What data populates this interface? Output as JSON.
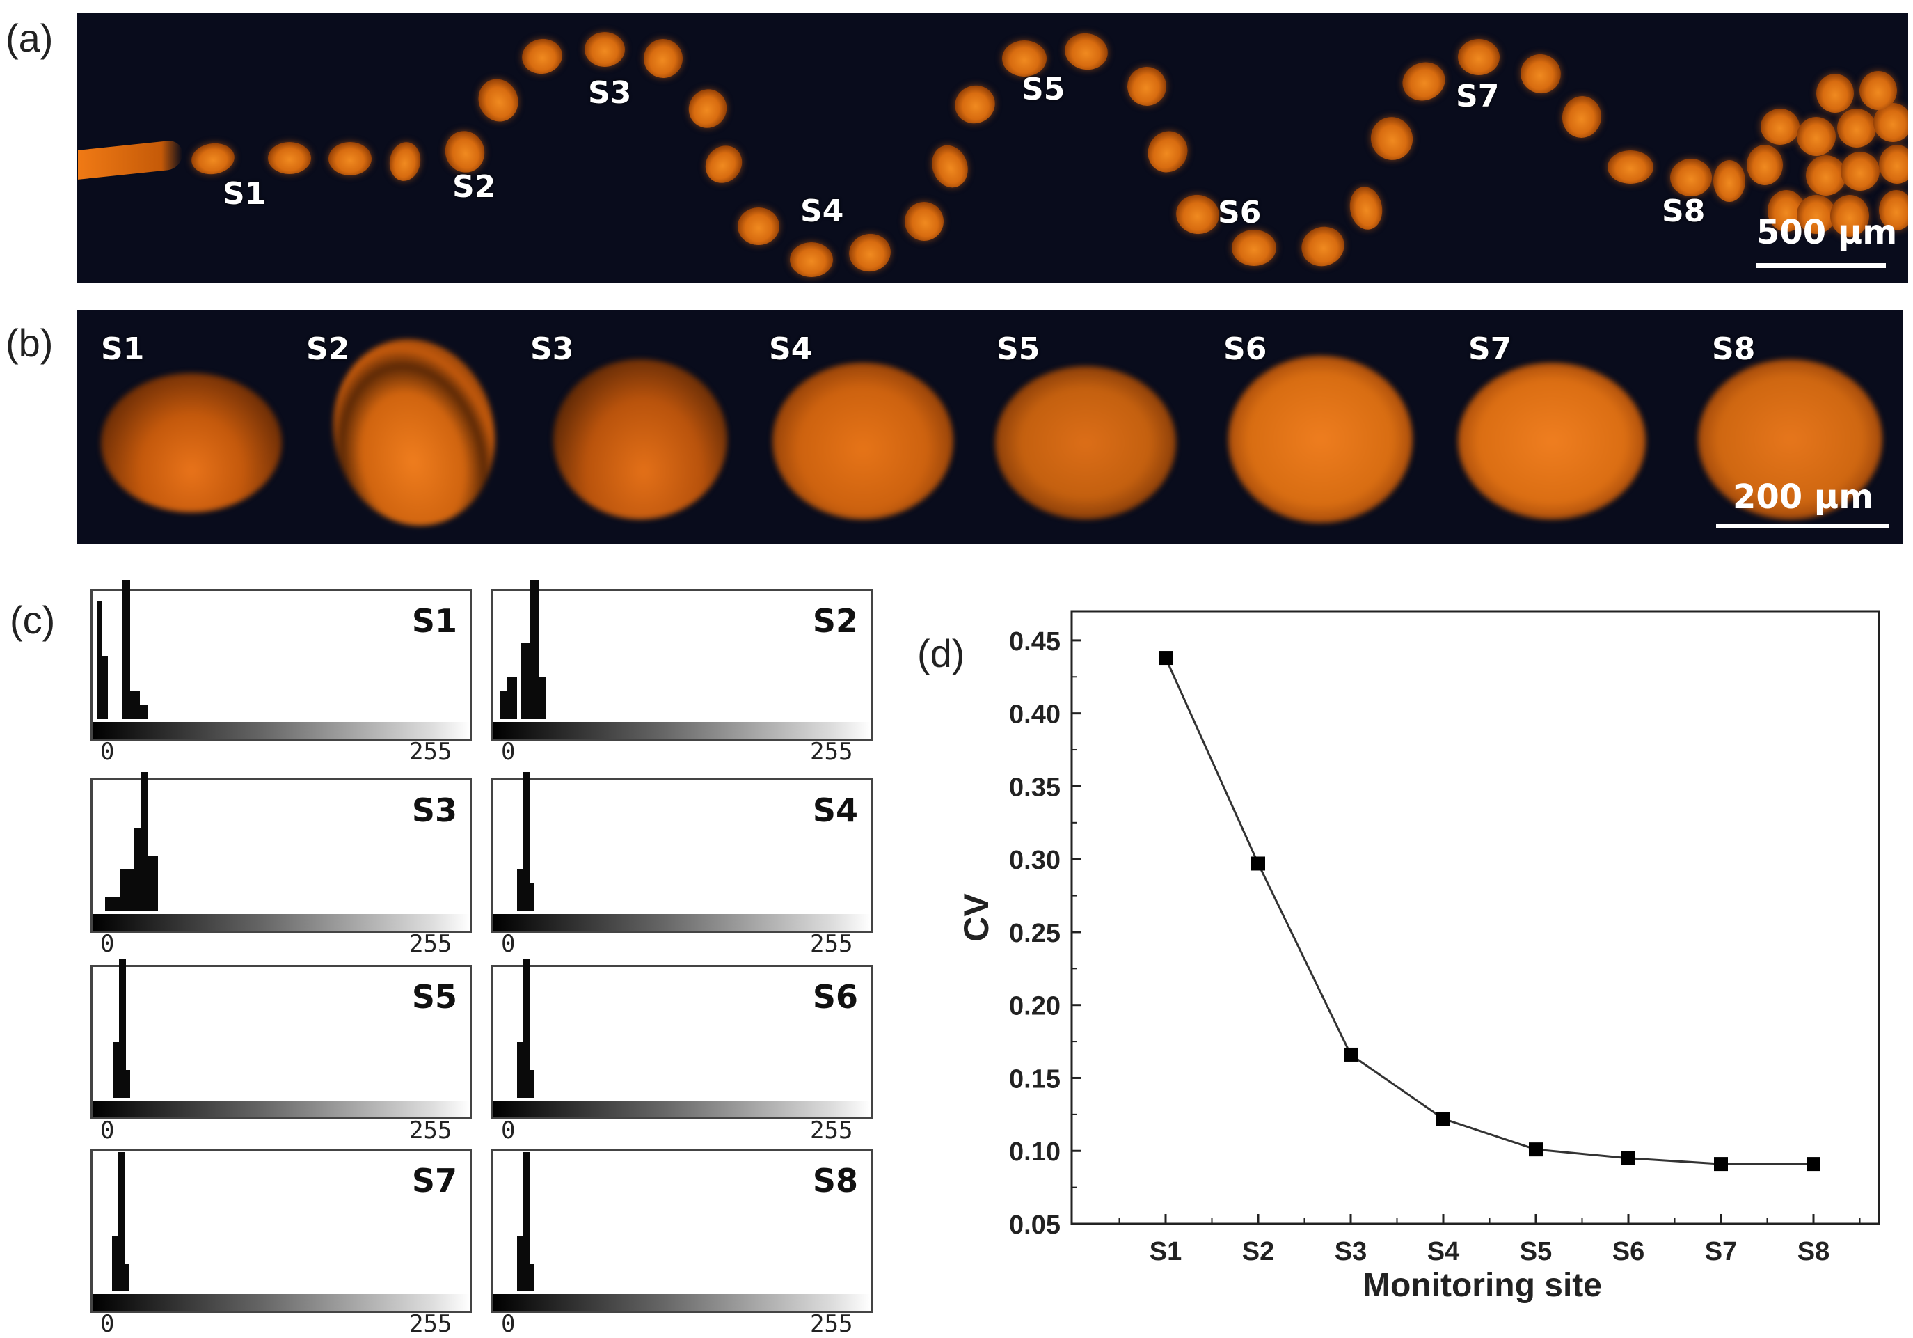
{
  "panel_a": {
    "label": "(a)",
    "site_labels": [
      "S1",
      "S2",
      "S3",
      "S4",
      "S5",
      "S6",
      "S7",
      "S8"
    ],
    "scalebar": "500 μm"
  },
  "panel_b": {
    "label": "(b)",
    "site_labels": [
      "S1",
      "S2",
      "S3",
      "S4",
      "S5",
      "S6",
      "S7",
      "S8"
    ],
    "scalebar": "200 μm"
  },
  "panel_c": {
    "label": "(c)",
    "axis_min": "0",
    "axis_max": "255",
    "histograms": [
      {
        "label": "S1"
      },
      {
        "label": "S2"
      },
      {
        "label": "S3"
      },
      {
        "label": "S4"
      },
      {
        "label": "S5"
      },
      {
        "label": "S6"
      },
      {
        "label": "S7"
      },
      {
        "label": "S8"
      }
    ]
  },
  "panel_d": {
    "label": "(d)"
  },
  "chart_data": {
    "type": "line",
    "title": "",
    "xlabel": "Monitoring site",
    "ylabel": "CV",
    "categories": [
      "S1",
      "S2",
      "S3",
      "S4",
      "S5",
      "S6",
      "S7",
      "S8"
    ],
    "series": [
      {
        "name": "CV",
        "values": [
          0.438,
          0.297,
          0.166,
          0.122,
          0.101,
          0.095,
          0.091,
          0.091
        ]
      }
    ],
    "ylim": [
      0.05,
      0.47
    ],
    "yticks": [
      "0.05",
      "0.10",
      "0.15",
      "0.20",
      "0.25",
      "0.30",
      "0.35",
      "0.40",
      "0.45"
    ],
    "marker": "square",
    "line_color": "#333333",
    "marker_color": "#000000"
  }
}
